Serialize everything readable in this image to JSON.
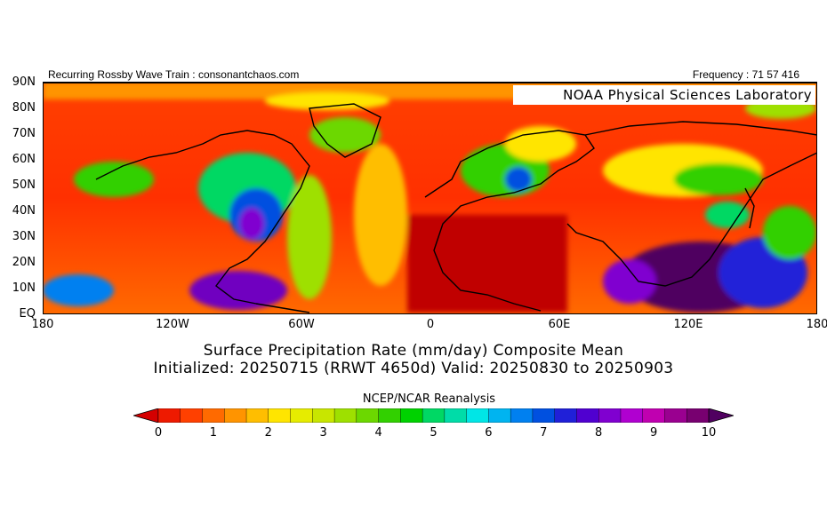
{
  "header": {
    "left_text": "Recurring Rossby Wave Train : consonantchaos.com",
    "right_text": "Frequency : 71 57 416",
    "inset_label": "NOAA Physical Sciences Laboratory"
  },
  "map": {
    "lat_labels": [
      "90N",
      "80N",
      "70N",
      "60N",
      "50N",
      "40N",
      "30N",
      "20N",
      "10N",
      "EQ"
    ],
    "lon_labels": [
      "180",
      "120W",
      "60W",
      "0",
      "60E",
      "120E",
      "180"
    ]
  },
  "titles": {
    "line1": "Surface Precipitation Rate (mm/day) Composite Mean",
    "line2": "Initialized: 20250715 (RRWT 4650d) Valid: 20250830 to 20250903",
    "source": "NCEP/NCAR Reanalysis"
  },
  "colorbar": {
    "tick_labels": [
      "0",
      "1",
      "2",
      "3",
      "4",
      "5",
      "6",
      "7",
      "8",
      "9",
      "10"
    ],
    "colors": [
      "#d40000",
      "#ee1a00",
      "#ff4000",
      "#ff6a00",
      "#ff9400",
      "#ffbe00",
      "#ffe500",
      "#e6ec00",
      "#c8e600",
      "#9ee000",
      "#6cd800",
      "#32d000",
      "#00d200",
      "#00d864",
      "#00dca8",
      "#00e6e6",
      "#00b4f0",
      "#0080f0",
      "#0050e0",
      "#2020d8",
      "#5000d0",
      "#8000d0",
      "#b000d0",
      "#c000b0",
      "#9a0090",
      "#780070",
      "#500060"
    ]
  }
}
